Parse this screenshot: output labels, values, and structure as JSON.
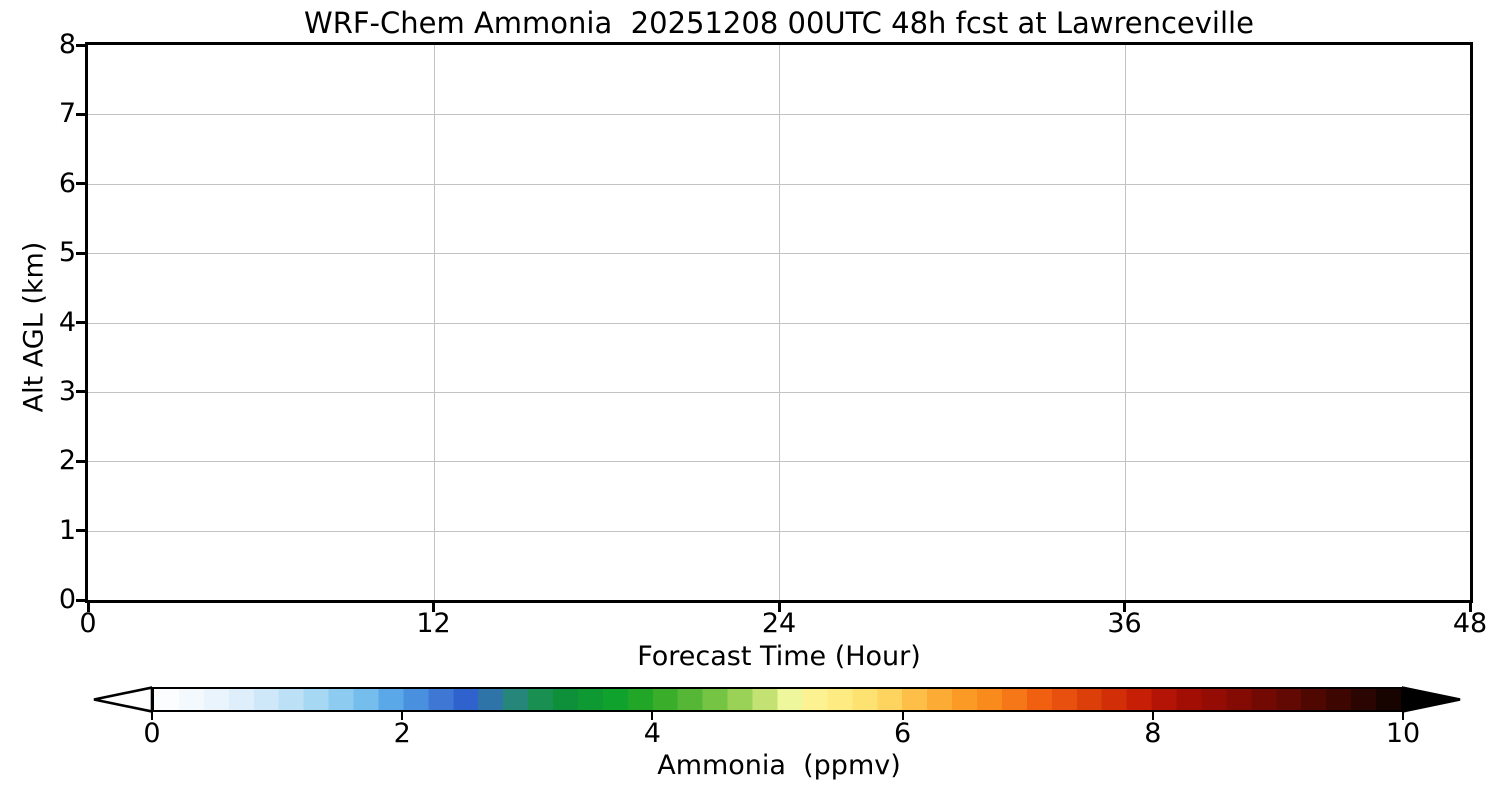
{
  "title": "WRF-Chem Ammonia  20251208 00UTC 48h fcst at Lawrenceville",
  "chart_data": {
    "type": "heatmap",
    "title": "WRF-Chem Ammonia  20251208 00UTC 48h fcst at Lawrenceville",
    "xlabel": "Forecast Time (Hour)",
    "ylabel": "Alt AGL (km)",
    "xlim": [
      0,
      48
    ],
    "ylim": [
      0,
      8
    ],
    "xticks": [
      0,
      12,
      24,
      36,
      48
    ],
    "yticks": [
      0,
      1,
      2,
      3,
      4,
      5,
      6,
      7,
      8
    ],
    "xgrid": [
      12,
      24,
      36
    ],
    "ygrid": [
      1,
      2,
      3,
      4,
      5,
      6,
      7
    ],
    "grid": true,
    "series": [],
    "field_note": "plot field uniformly white (no ammonia values above colorbar minimum visible)",
    "colorbar": {
      "label": "Ammonia  (ppmv)",
      "ticks": [
        0,
        2,
        4,
        6,
        8,
        10
      ],
      "range": [
        0,
        10
      ],
      "extend": "both",
      "under_color": "#ffffff",
      "over_color": "#000000",
      "n_bands": 50,
      "stops": [
        [
          0.0,
          "#ffffff"
        ],
        [
          0.4,
          "#f0f7fd"
        ],
        [
          0.8,
          "#d8ecfa"
        ],
        [
          1.2,
          "#b2dcf4"
        ],
        [
          1.6,
          "#81c7ee"
        ],
        [
          2.0,
          "#4d9de6"
        ],
        [
          2.2,
          "#4583d8"
        ],
        [
          2.5,
          "#2f62cc"
        ],
        [
          2.8,
          "#2d7d96"
        ],
        [
          3.0,
          "#1f8f5c"
        ],
        [
          3.3,
          "#0e8f3a"
        ],
        [
          3.7,
          "#0fa22c"
        ],
        [
          4.0,
          "#2ca826"
        ],
        [
          4.3,
          "#55b735"
        ],
        [
          4.6,
          "#86ca4a"
        ],
        [
          4.9,
          "#c3e273"
        ],
        [
          5.1,
          "#eef79c"
        ],
        [
          5.3,
          "#fdf292"
        ],
        [
          5.6,
          "#fee97b"
        ],
        [
          5.9,
          "#fed45e"
        ],
        [
          6.2,
          "#fdb43c"
        ],
        [
          6.5,
          "#fb9a24"
        ],
        [
          6.8,
          "#f8831a"
        ],
        [
          7.1,
          "#f16010"
        ],
        [
          7.5,
          "#dd3f0b"
        ],
        [
          7.9,
          "#c71f06"
        ],
        [
          8.2,
          "#ab0f05"
        ],
        [
          8.6,
          "#8c0b03"
        ],
        [
          9.0,
          "#690902"
        ],
        [
          9.4,
          "#470701"
        ],
        [
          9.7,
          "#2b0501"
        ],
        [
          10.0,
          "#0d0301"
        ]
      ]
    }
  },
  "colors": {
    "background": "#ffffff",
    "axis": "#000000",
    "grid": "#c3c3c3",
    "text": "#000000"
  }
}
